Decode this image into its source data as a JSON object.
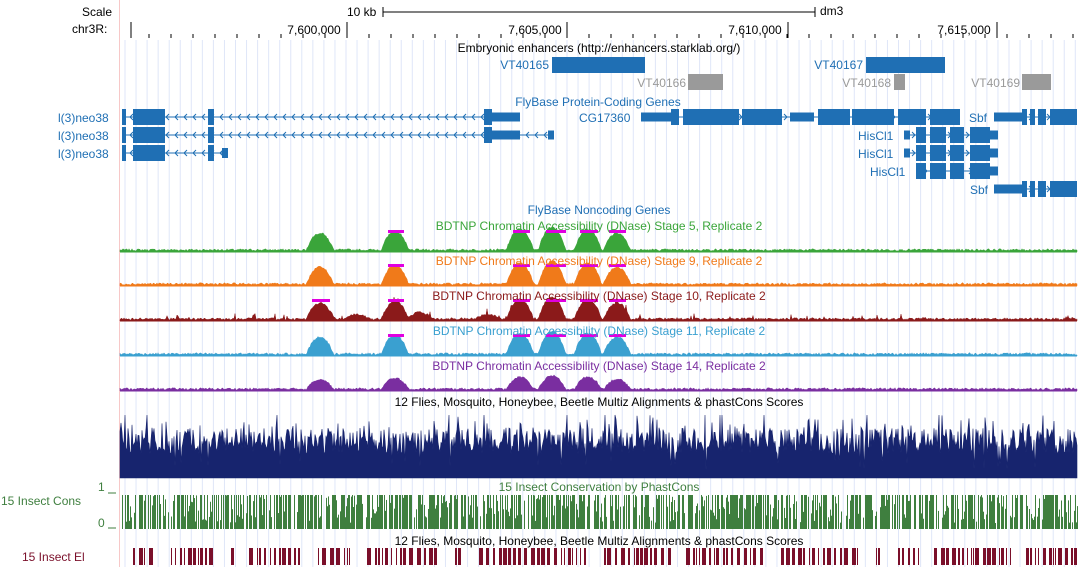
{
  "ruler": {
    "scale_label": "Scale",
    "chrom_label": "chr3R:",
    "scale_bar_label": "10 kb",
    "assembly": "dm3",
    "positions": [
      "7,600,000",
      "7,605,000",
      "7,610,000",
      "7,615,000"
    ]
  },
  "tracks": {
    "enhancers": {
      "title": "Embryonic enhancers (http://enhancers.starklab.org/)",
      "items": [
        {
          "name": "VT40165",
          "color": "#1f6fb4"
        },
        {
          "name": "VT40166",
          "color": "#9a9a9a"
        },
        {
          "name": "VT40167",
          "color": "#1f6fb4"
        },
        {
          "name": "VT40168",
          "color": "#9a9a9a"
        },
        {
          "name": "VT40169",
          "color": "#9a9a9a"
        }
      ]
    },
    "protein_coding": {
      "title": "FlyBase Protein-Coding Genes",
      "genes": [
        "l(3)neo38",
        "l(3)neo38",
        "l(3)neo38",
        "CG17360",
        "Sbf",
        "HisCl1",
        "HisCl1",
        "HisCl1",
        "Sbf"
      ],
      "color": "#1f6fb4"
    },
    "noncoding": {
      "title": "FlyBase Noncoding Genes",
      "color": "#1f6fb4"
    },
    "dnase": [
      {
        "title": "BDTNP Chromatin Accessibility (DNase) Stage 5, Replicate 2",
        "color": "#3aa53a"
      },
      {
        "title": "BDTNP Chromatin Accessibility (DNase) Stage 9, Replicate 2",
        "color": "#f07a1a"
      },
      {
        "title": "BDTNP Chromatin Accessibility (DNase) Stage 10, Replicate 2",
        "color": "#8b1a1a"
      },
      {
        "title": "BDTNP Chromatin Accessibility (DNase) Stage 11, Replicate 2",
        "color": "#3aa0d0"
      },
      {
        "title": "BDTNP Chromatin Accessibility (DNase) Stage 14, Replicate 2",
        "color": "#7a2ea0"
      }
    ],
    "multiz": {
      "title": "12 Flies, Mosquito, Honeybee, Beetle Multiz Alignments & phastCons Scores",
      "color": "#17246e"
    },
    "phastcons": {
      "title": "15 Insect Conservation by PhastCons",
      "side_label": "15 Insect Cons",
      "y_max": "1",
      "y_min": "0",
      "color": "#3f7f3f"
    },
    "elements": {
      "title": "12 Flies, Mosquito, Honeybee, Beetle Multiz Alignments & phastCons Scores",
      "side_label": "15 Insect El",
      "color": "#7a0f2a"
    }
  }
}
